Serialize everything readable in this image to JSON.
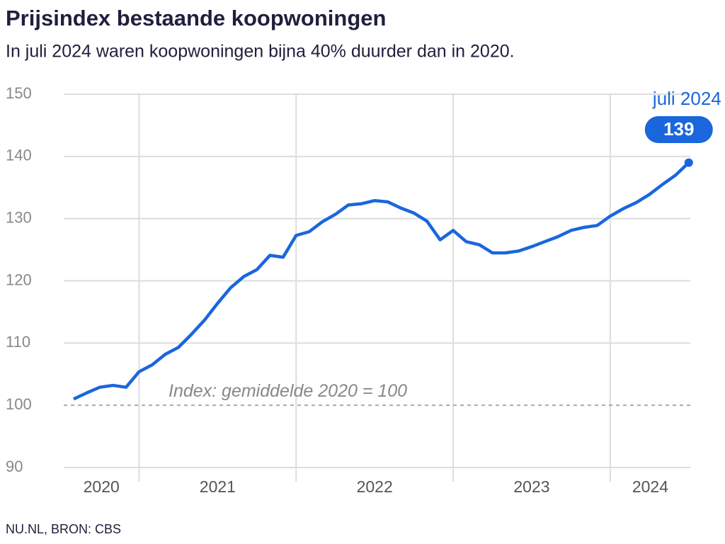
{
  "chart_data": {
    "type": "line",
    "title": "Prijsindex bestaande koopwoningen",
    "subtitle": "In juli 2024 waren koopwoningen bijna 40% duurder dan in 2020.",
    "source": "NU.NL, BRON: CBS",
    "annotation": "juli 2024",
    "reference_line": {
      "value": 100,
      "label": "Index: gemiddelde 2020 = 100"
    },
    "x": [
      2020.583,
      2020.667,
      2020.75,
      2020.833,
      2020.917,
      2021.0,
      2021.083,
      2021.167,
      2021.25,
      2021.333,
      2021.417,
      2021.5,
      2021.583,
      2021.667,
      2021.75,
      2021.833,
      2021.917,
      2022.0,
      2022.083,
      2022.167,
      2022.25,
      2022.333,
      2022.417,
      2022.5,
      2022.583,
      2022.667,
      2022.75,
      2022.833,
      2022.917,
      2023.0,
      2023.083,
      2023.167,
      2023.25,
      2023.333,
      2023.417,
      2023.5,
      2023.583,
      2023.667,
      2023.75,
      2023.833,
      2023.917,
      2024.0,
      2024.083,
      2024.167,
      2024.25,
      2024.333,
      2024.417,
      2024.5
    ],
    "series": [
      {
        "name": null,
        "color": "#1a66dd",
        "values": [
          101,
          102,
          102.9,
          103.2,
          102.9,
          105.4,
          106.5,
          108.2,
          109.3,
          111.4,
          113.7,
          116.4,
          118.9,
          120.7,
          121.8,
          124.1,
          123.8,
          127.3,
          127.9,
          129.5,
          130.7,
          132.2,
          132.4,
          132.9,
          132.7,
          131.7,
          130.9,
          129.6,
          126.6,
          128.1,
          126.3,
          125.8,
          124.5,
          124.5,
          124.8,
          125.5,
          126.3,
          127.1,
          128.1,
          128.6,
          128.9,
          130.4,
          131.6,
          132.6,
          133.9,
          135.5,
          137.0,
          139.0
        ]
      }
    ],
    "xlim": [
      2020.52,
      2024.51
    ],
    "year_labels": [
      2020,
      2021,
      2022,
      2023,
      2024
    ],
    "ylim": [
      90,
      150
    ],
    "yticks": [
      90,
      100,
      110,
      120,
      130,
      140,
      150
    ],
    "grid": true
  }
}
